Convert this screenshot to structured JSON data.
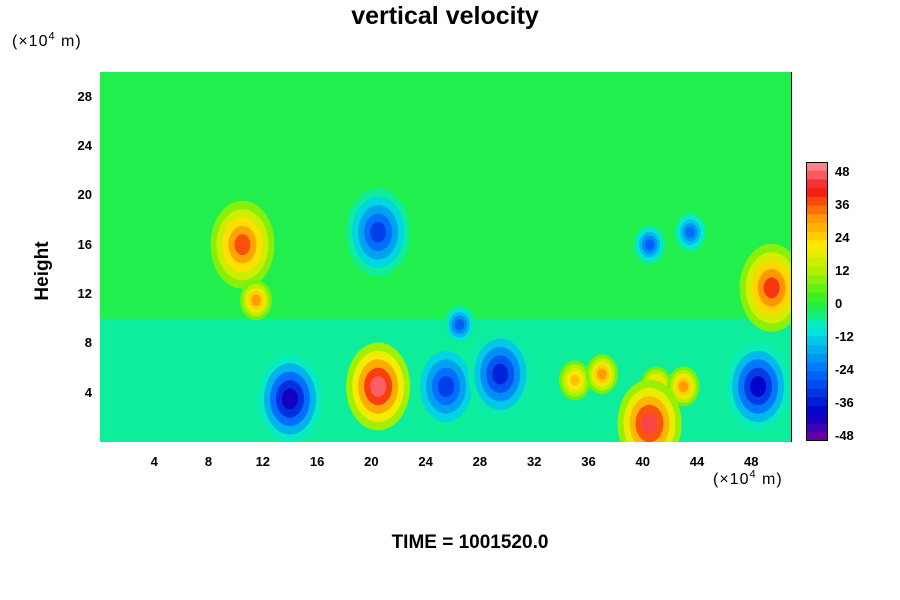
{
  "chart_data": {
    "type": "heatmap",
    "title": "vertical velocity",
    "ylabel": "Height",
    "xlabel": "",
    "x_unit": "(×10",
    "x_unit_exp": "4",
    "x_unit_suffix": " m)",
    "y_unit": "(×10",
    "y_unit_exp": "4",
    "y_unit_suffix": " m)",
    "xlim": [
      0,
      51
    ],
    "ylim": [
      0,
      30
    ],
    "x_ticks": [
      "4",
      "8",
      "12",
      "16",
      "20",
      "24",
      "28",
      "32",
      "36",
      "40",
      "44",
      "48"
    ],
    "y_ticks": [
      "4",
      "8",
      "12",
      "16",
      "20",
      "24",
      "28"
    ],
    "colorbar": {
      "range": [
        -48,
        48
      ],
      "ticks": [
        "48",
        "36",
        "24",
        "12",
        "0",
        "-12",
        "-24",
        "-36",
        "-48"
      ]
    },
    "features": [
      {
        "x": 14,
        "y": 3.5,
        "value": -40
      },
      {
        "x": 20.5,
        "y": 4.5,
        "value": 44
      },
      {
        "x": 25.5,
        "y": 4.5,
        "value": -30
      },
      {
        "x": 29.5,
        "y": 5.5,
        "value": -34
      },
      {
        "x": 35,
        "y": 5,
        "value": 24
      },
      {
        "x": 37,
        "y": 5.5,
        "value": 28
      },
      {
        "x": 41,
        "y": 4.5,
        "value": 26
      },
      {
        "x": 43,
        "y": 4.5,
        "value": 28
      },
      {
        "x": 40.5,
        "y": 1.5,
        "value": 42
      },
      {
        "x": 48.5,
        "y": 4.5,
        "value": -38
      },
      {
        "x": 10.5,
        "y": 16,
        "value": 34
      },
      {
        "x": 11.5,
        "y": 11.5,
        "value": 28
      },
      {
        "x": 20.5,
        "y": 17,
        "value": -30
      },
      {
        "x": 26.5,
        "y": 9.5,
        "value": -26
      },
      {
        "x": 40.5,
        "y": 16,
        "value": -26
      },
      {
        "x": 43.5,
        "y": 17,
        "value": -24
      },
      {
        "x": 49.5,
        "y": 12.5,
        "value": 36
      }
    ]
  },
  "time_label": "TIME = 1001520.0"
}
